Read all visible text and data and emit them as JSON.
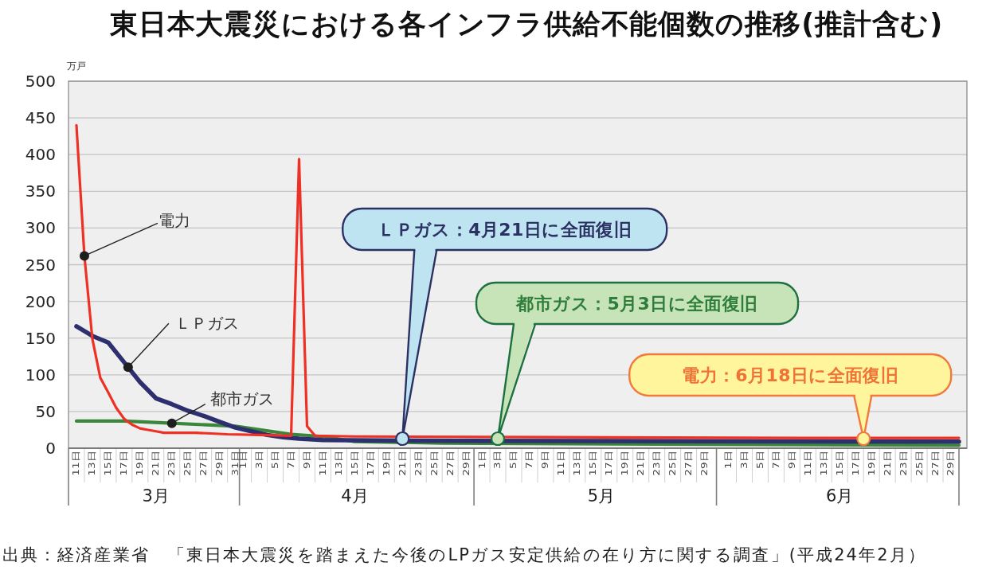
{
  "chart_data": {
    "type": "line",
    "title": "東日本大震災における各インフラ供給不能個数の推移(推計含む)",
    "ylabel": "万戸",
    "xlim": [
      "--03-10",
      "--07-01"
    ],
    "xticks": [
      {
        "value": "--03-11",
        "label": "11日"
      },
      {
        "value": "--03-13",
        "label": "13日"
      },
      {
        "value": "--03-15",
        "label": "15日"
      },
      {
        "value": "--03-17",
        "label": "17日"
      },
      {
        "value": "--03-19",
        "label": "19日"
      },
      {
        "value": "--03-21",
        "label": "21日"
      },
      {
        "value": "--03-23",
        "label": "23日"
      },
      {
        "value": "--03-25",
        "label": "25日"
      },
      {
        "value": "--03-27",
        "label": "27日"
      },
      {
        "value": "--03-29",
        "label": "29日"
      },
      {
        "value": "--03-31",
        "label": "31日"
      },
      {
        "value": "--04-01",
        "label": "1日"
      },
      {
        "value": "--04-03",
        "label": "3日"
      },
      {
        "value": "--04-05",
        "label": "5日"
      },
      {
        "value": "--04-07",
        "label": "7日"
      },
      {
        "value": "--04-09",
        "label": "9日"
      },
      {
        "value": "--04-11",
        "label": "11日"
      },
      {
        "value": "--04-13",
        "label": "13日"
      },
      {
        "value": "--04-15",
        "label": "15日"
      },
      {
        "value": "--04-17",
        "label": "17日"
      },
      {
        "value": "--04-19",
        "label": "19日"
      },
      {
        "value": "--04-21",
        "label": "21日"
      },
      {
        "value": "--04-23",
        "label": "23日"
      },
      {
        "value": "--04-25",
        "label": "25日"
      },
      {
        "value": "--04-27",
        "label": "27日"
      },
      {
        "value": "--04-29",
        "label": "29日"
      },
      {
        "value": "--05-01",
        "label": "1日"
      },
      {
        "value": "--05-03",
        "label": "3日"
      },
      {
        "value": "--05-05",
        "label": "5日"
      },
      {
        "value": "--05-07",
        "label": "7日"
      },
      {
        "value": "--05-09",
        "label": "9日"
      },
      {
        "value": "--05-11",
        "label": "11日"
      },
      {
        "value": "--05-13",
        "label": "13日"
      },
      {
        "value": "--05-15",
        "label": "15日"
      },
      {
        "value": "--05-17",
        "label": "17日"
      },
      {
        "value": "--05-19",
        "label": "19日"
      },
      {
        "value": "--05-21",
        "label": "21日"
      },
      {
        "value": "--05-23",
        "label": "23日"
      },
      {
        "value": "--05-25",
        "label": "25日"
      },
      {
        "value": "--05-27",
        "label": "27日"
      },
      {
        "value": "--05-29",
        "label": "29日"
      },
      {
        "value": "--06-01",
        "label": "1日"
      },
      {
        "value": "--06-03",
        "label": "3日"
      },
      {
        "value": "--06-05",
        "label": "5日"
      },
      {
        "value": "--06-07",
        "label": "7日"
      },
      {
        "value": "--06-09",
        "label": "9日"
      },
      {
        "value": "--06-11",
        "label": "11日"
      },
      {
        "value": "--06-13",
        "label": "13日"
      },
      {
        "value": "--06-15",
        "label": "15日"
      },
      {
        "value": "--06-17",
        "label": "17日"
      },
      {
        "value": "--06-19",
        "label": "19日"
      },
      {
        "value": "--06-21",
        "label": "21日"
      },
      {
        "value": "--06-23",
        "label": "23日"
      },
      {
        "value": "--06-25",
        "label": "25日"
      },
      {
        "value": "--06-27",
        "label": "27日"
      },
      {
        "value": "--06-29",
        "label": "29日"
      }
    ],
    "x2lim": [
      "--03-10",
      "--07-01"
    ],
    "x2ticks": [
      {
        "value": "--03-21",
        "label": "3月"
      },
      {
        "value": "--04-15",
        "label": "4月"
      },
      {
        "value": "--05-16",
        "label": "5月"
      },
      {
        "value": "--06-15",
        "label": "6月"
      }
    ],
    "ylim": [
      0,
      500
    ],
    "yticks": [
      0,
      50,
      100,
      150,
      200,
      250,
      300,
      350,
      400,
      450,
      500
    ],
    "grid": "y",
    "series": [
      {
        "name": "電力",
        "color": "#ee3124",
        "x": [
          "--03-11",
          "--03-12",
          "--03-13",
          "--03-14",
          "--03-15",
          "--03-16",
          "--03-17",
          "--03-18",
          "--03-19",
          "--03-20",
          "--03-21",
          "--03-22",
          "--03-26",
          "--03-30",
          "--04-03",
          "--04-07",
          "--04-08",
          "--04-09",
          "--04-10",
          "--04-15",
          "--05-10",
          "--06-10",
          "--06-30"
        ],
        "values": [
          440,
          262,
          149,
          96,
          76,
          55,
          40,
          32,
          27,
          25,
          23,
          21,
          21,
          19,
          18,
          17,
          394,
          30,
          17,
          16,
          15,
          14,
          14
        ]
      },
      {
        "name": "ＬＰガス",
        "color": "#2d2f6e",
        "x": [
          "--03-11",
          "--03-13",
          "--03-15",
          "--03-17",
          "--03-19",
          "--03-21",
          "--03-23",
          "--03-25",
          "--03-27",
          "--03-29",
          "--03-31",
          "--04-02",
          "--04-04",
          "--04-06",
          "--04-08",
          "--04-11",
          "--04-28",
          "--06-30"
        ],
        "values": [
          166,
          153,
          144,
          117,
          90,
          68,
          60,
          51,
          44,
          36,
          28,
          23,
          18,
          15,
          13,
          11,
          10,
          9
        ]
      },
      {
        "name": "都市ガス",
        "color": "#3a873c",
        "x": [
          "--03-11",
          "--03-17",
          "--03-23",
          "--03-31",
          "--04-07",
          "--04-11",
          "--04-15",
          "--04-26",
          "--05-12",
          "--06-30"
        ],
        "values": [
          37,
          37,
          34,
          30,
          19,
          16,
          9,
          7,
          6,
          4
        ]
      }
    ],
    "annotations": [
      {
        "text": "ＬＰガス：4月21日に全面復旧",
        "x": "--04-21",
        "y": 13
      },
      {
        "text": "都市ガス：5月3日に全面復旧",
        "x": "--05-03",
        "y": 13
      },
      {
        "text": "電力：6月18日に全面復旧",
        "x": "--06-18",
        "y": 13
      },
      "出典：経済産業省　「東日本大震災を踏まえた今後のLPガス安定供給の在り方に関する調査」(平成24年2月）"
    ]
  }
}
